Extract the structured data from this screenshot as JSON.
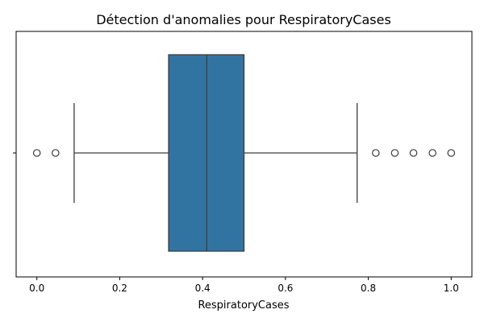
{
  "chart_data": {
    "type": "boxplot",
    "title": "Détection d'anomalies pour RespiratoryCases",
    "xlabel": "RespiratoryCases",
    "ylabel": "",
    "xlim": [
      -0.05,
      1.05
    ],
    "x_ticks": [
      0.0,
      0.2,
      0.4,
      0.6,
      0.8,
      1.0
    ],
    "x_tick_labels": [
      "0.0",
      "0.2",
      "0.4",
      "0.6",
      "0.8",
      "1.0"
    ],
    "grid": false,
    "box": {
      "whisker_low": 0.09,
      "q1": 0.318,
      "median": 0.41,
      "q3": 0.5,
      "whisker_high": 0.773
    },
    "outliers": [
      0.0,
      0.045,
      0.818,
      0.864,
      0.909,
      0.955,
      1.0
    ],
    "colors": {
      "box_fill": "#3274a1",
      "line": "#3d3d3d"
    }
  }
}
